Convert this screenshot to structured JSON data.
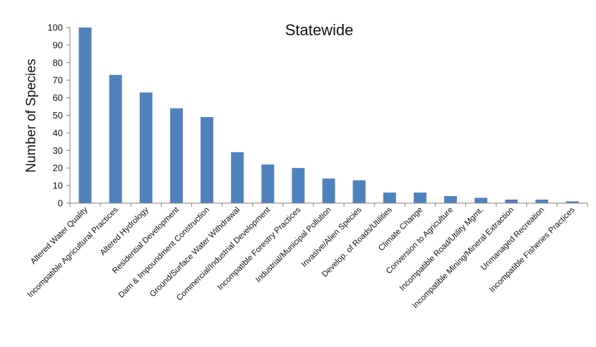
{
  "chart_data": {
    "type": "bar",
    "title": "Statewide",
    "xlabel": "",
    "ylabel": "Number of Species",
    "ylim": [
      0,
      100
    ],
    "yticks": [
      0,
      10,
      20,
      30,
      40,
      50,
      60,
      70,
      80,
      90,
      100
    ],
    "grid": false,
    "legend": "none",
    "bar_color": "#4F81BD",
    "categories": [
      "Altered Water Quality",
      "Incompatible Agricultural Practices",
      "Altered Hydrology",
      "Residential Development",
      "Dam & Impoundment Construction",
      "Ground/Surface Water Withdrawal",
      "Commercial/Industrial Development",
      "Incompatible Forestry Practices",
      "Industrial/Municipal Pollution",
      "Invasive/Alien Species",
      "Develop. of Roads/Utilities",
      "Climate Change",
      "Conversion to Agriculture",
      "Incompatible Road/Utility Mgmt.",
      "Incompatible Mining/Mineral Extraction",
      "Unmanaged Recreation",
      "Incompatible Fisheries Practices"
    ],
    "values": [
      100,
      73,
      63,
      54,
      49,
      29,
      22,
      20,
      14,
      13,
      6,
      6,
      4,
      3,
      2,
      2,
      1
    ]
  }
}
